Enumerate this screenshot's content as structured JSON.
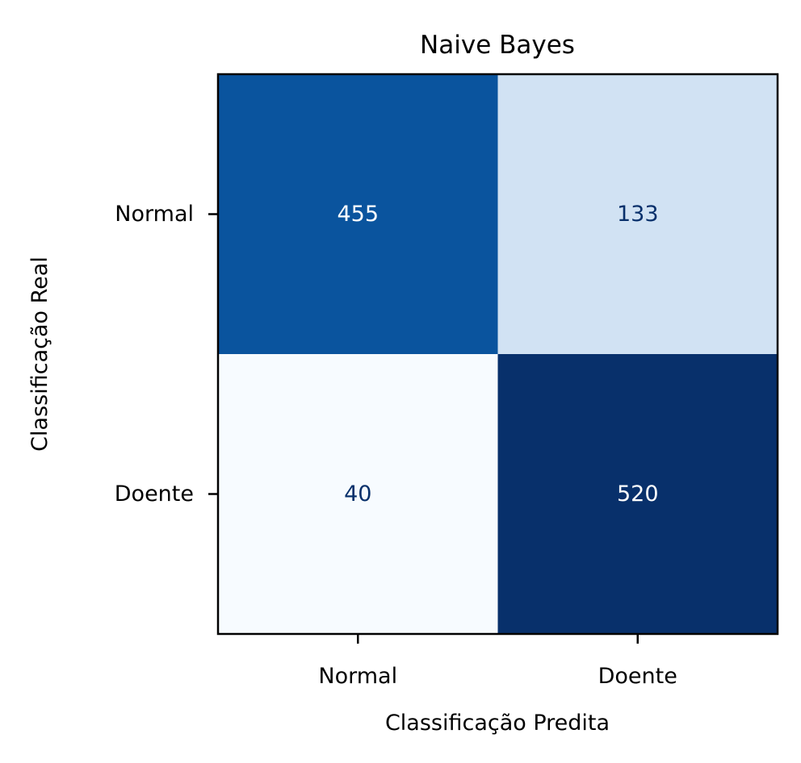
{
  "chart_data": {
    "type": "heatmap",
    "title": "Naive Bayes",
    "xlabel": "Classificação Predita",
    "ylabel": "Classificação Real",
    "x_categories": [
      "Normal",
      "Doente"
    ],
    "y_categories": [
      "Normal",
      "Doente"
    ],
    "values": [
      [
        455,
        133
      ],
      [
        40,
        520
      ]
    ],
    "colormap": "Blues",
    "colorbar": false,
    "grid": false
  }
}
